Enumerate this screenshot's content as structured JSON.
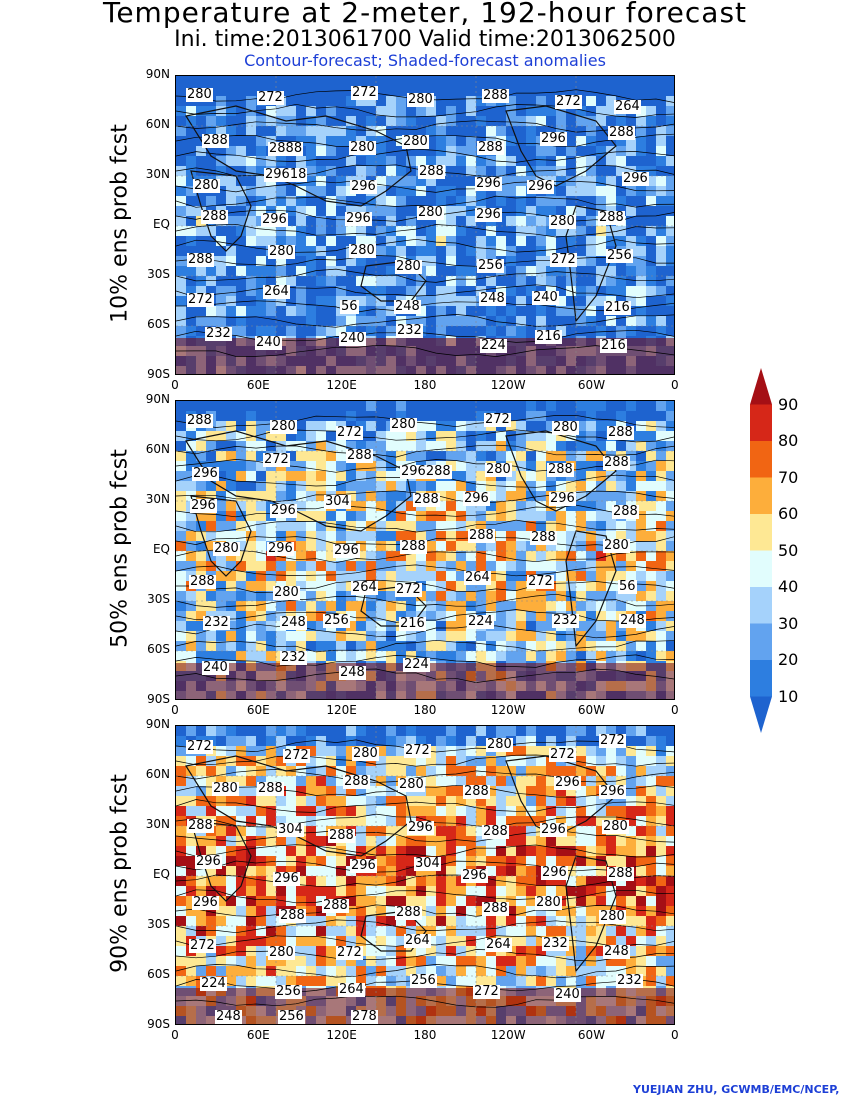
{
  "header": {
    "title": "Temperature at 2-meter, 192-hour forecast",
    "times": "Ini. time:2013061700    Valid time:2013062500",
    "subtitle": "Contour-forecast; Shaded-forecast anomalies"
  },
  "axes": {
    "lat_labels": [
      "90N",
      "60N",
      "30N",
      "EQ",
      "30S",
      "60S",
      "90S"
    ],
    "lon_labels": [
      "0",
      "60E",
      "120E",
      "180",
      "120W",
      "60W",
      "0"
    ]
  },
  "panels": [
    {
      "label": "10% ens prob fcst",
      "warm_fraction": 0.3,
      "contour_labels": [
        "280",
        "272",
        "272",
        "280",
        "288",
        "272",
        "264",
        "288",
        "2888",
        "280",
        "280",
        "288",
        "296",
        "288",
        "280",
        "29618",
        "296",
        "288",
        "296",
        "296",
        "296",
        "288",
        "296",
        "296",
        "280",
        "296",
        "280",
        "288",
        "288",
        "280",
        "280",
        "280",
        "256",
        "272",
        "256",
        "272",
        "264",
        "56",
        "248",
        "248",
        "240",
        "216",
        "232",
        "240",
        "240",
        "232",
        "224",
        "216",
        "216"
      ]
    },
    {
      "label": "50% ens prob fcst",
      "warm_fraction": 0.62,
      "contour_labels": [
        "288",
        "280",
        "272",
        "280",
        "272",
        "280",
        "288",
        "296",
        "272",
        "288",
        "296288",
        "280",
        "288",
        "288",
        "296",
        "296",
        "304",
        "288",
        "296",
        "296",
        "288",
        "280",
        "296",
        "296",
        "288",
        "288",
        "288",
        "280",
        "288",
        "280",
        "264",
        "272",
        "264",
        "272",
        "56",
        "232",
        "248",
        "256",
        "216",
        "224",
        "232",
        "248",
        "240",
        "232",
        "248",
        "224"
      ]
    },
    {
      "label": "90% ens prob fcst",
      "warm_fraction": 0.88,
      "contour_labels": [
        "272",
        "272",
        "280",
        "272",
        "280",
        "272",
        "272",
        "280",
        "288",
        "288",
        "280",
        "288",
        "296",
        "296",
        "288",
        "304",
        "288",
        "296",
        "288",
        "296",
        "280",
        "296",
        "296",
        "296",
        "304",
        "296",
        "296",
        "288",
        "296",
        "288",
        "288",
        "288",
        "288",
        "280",
        "280",
        "272",
        "280",
        "272",
        "264",
        "264",
        "232",
        "248",
        "224",
        "256",
        "264",
        "256",
        "272",
        "240",
        "232",
        "248",
        "256",
        "278"
      ]
    }
  ],
  "colorbar": {
    "levels": [
      "90",
      "80",
      "70",
      "60",
      "50",
      "40",
      "30",
      "20",
      "10"
    ],
    "colors": [
      "#a50f15",
      "#d62718",
      "#f16513",
      "#fdae3b",
      "#fee894",
      "#e1fdfd",
      "#a5d2fb",
      "#62a3ef",
      "#2d7ee0",
      "#1e63cf"
    ]
  },
  "credit": "YUEJIAN ZHU, GCWMB/EMC/NCEP,"
}
